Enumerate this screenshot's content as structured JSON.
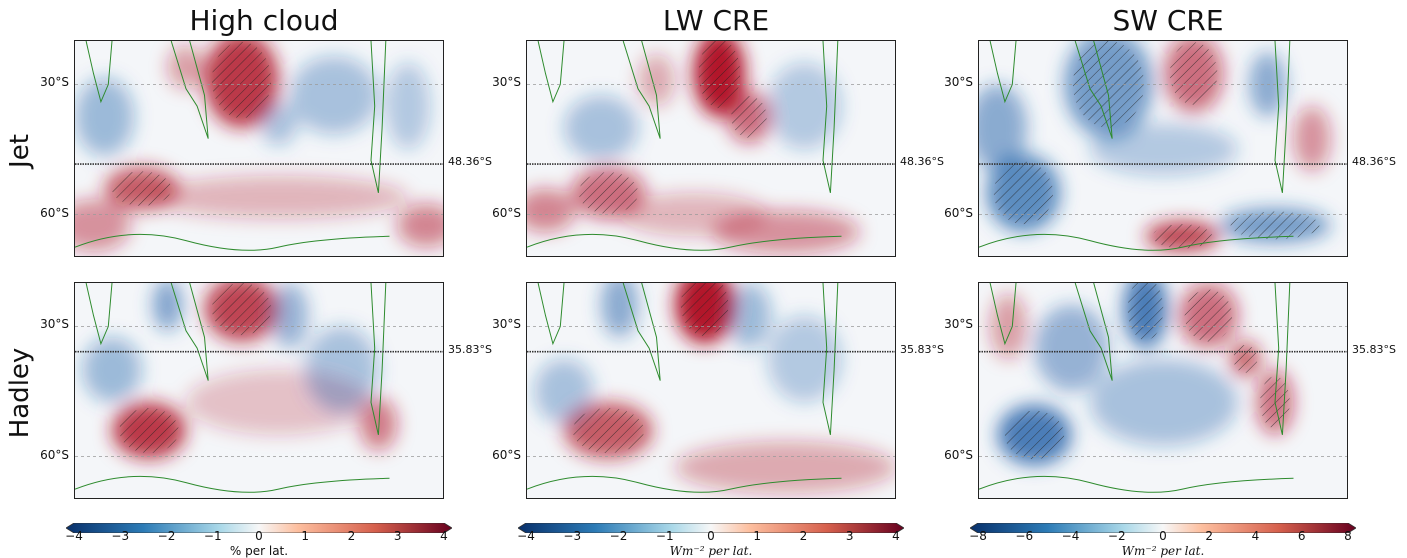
{
  "columns": [
    {
      "title": "High cloud",
      "colorbar": {
        "min": -4,
        "max": 4,
        "ticks": [
          "−4",
          "−3",
          "−2",
          "−1",
          "0",
          "1",
          "2",
          "3",
          "4"
        ],
        "label": "% per lat.",
        "label_italic": false
      }
    },
    {
      "title": "LW CRE",
      "colorbar": {
        "min": -4,
        "max": 4,
        "ticks": [
          "−4",
          "−3",
          "−2",
          "−1",
          "0",
          "1",
          "2",
          "3",
          "4"
        ],
        "label": "Wm⁻² per lat.",
        "label_italic": true
      }
    },
    {
      "title": "SW CRE",
      "colorbar": {
        "min": -8,
        "max": 8,
        "ticks": [
          "−8",
          "−6",
          "−4",
          "−2",
          "0",
          "2",
          "4",
          "6",
          "8"
        ],
        "label": "Wm⁻² per lat.",
        "label_italic": true
      }
    }
  ],
  "rows": [
    {
      "label": "Jet",
      "divider_label": "48.36°S",
      "yticks": [
        "30°S",
        "60°S"
      ]
    },
    {
      "label": "Hadley",
      "divider_label": "35.83°S",
      "yticks": [
        "30°S",
        "60°S"
      ]
    }
  ],
  "colors": {
    "negative": "#1f5fa8",
    "positive": "#b2182b",
    "coast": "#2e8b2e",
    "divider": "#333333",
    "grid": "#9a9a9a",
    "hatch": "#222222"
  },
  "chart_data": {
    "type": "heatmap",
    "description_axis": "latitude",
    "y_range": [
      "20°S",
      "70°S"
    ],
    "grid": "dashed at 30°S and 60°S",
    "panels": [
      {
        "column": "High cloud",
        "row": "Jet",
        "divider_lat": "48.36°S",
        "blobs": [
          {
            "x": 0.45,
            "y": 0.18,
            "rx": 0.1,
            "ry": 0.22,
            "v": 0.85
          },
          {
            "x": 0.3,
            "y": 0.12,
            "rx": 0.05,
            "ry": 0.1,
            "v": 0.4
          },
          {
            "x": 0.55,
            "y": 0.38,
            "rx": 0.05,
            "ry": 0.1,
            "v": -0.35
          },
          {
            "x": 0.08,
            "y": 0.35,
            "rx": 0.08,
            "ry": 0.18,
            "v": -0.4
          },
          {
            "x": 0.7,
            "y": 0.25,
            "rx": 0.12,
            "ry": 0.18,
            "v": -0.35
          },
          {
            "x": 0.9,
            "y": 0.3,
            "rx": 0.06,
            "ry": 0.2,
            "v": -0.3
          },
          {
            "x": 0.18,
            "y": 0.68,
            "rx": 0.1,
            "ry": 0.1,
            "v": 0.7
          },
          {
            "x": 0.05,
            "y": 0.85,
            "rx": 0.1,
            "ry": 0.12,
            "v": 0.45
          },
          {
            "x": 0.55,
            "y": 0.72,
            "rx": 0.35,
            "ry": 0.1,
            "v": 0.3
          },
          {
            "x": 0.95,
            "y": 0.85,
            "rx": 0.08,
            "ry": 0.1,
            "v": 0.5
          }
        ]
      },
      {
        "column": "LW CRE",
        "row": "Jet",
        "divider_lat": "48.36°S",
        "blobs": [
          {
            "x": 0.52,
            "y": 0.15,
            "rx": 0.07,
            "ry": 0.2,
            "v": 1.0
          },
          {
            "x": 0.6,
            "y": 0.35,
            "rx": 0.06,
            "ry": 0.12,
            "v": 0.6
          },
          {
            "x": 0.35,
            "y": 0.18,
            "rx": 0.05,
            "ry": 0.12,
            "v": 0.35
          },
          {
            "x": 0.2,
            "y": 0.4,
            "rx": 0.1,
            "ry": 0.15,
            "v": -0.35
          },
          {
            "x": 0.75,
            "y": 0.3,
            "rx": 0.1,
            "ry": 0.2,
            "v": -0.3
          },
          {
            "x": 0.22,
            "y": 0.7,
            "rx": 0.1,
            "ry": 0.12,
            "v": 0.6
          },
          {
            "x": 0.05,
            "y": 0.78,
            "rx": 0.08,
            "ry": 0.1,
            "v": 0.5
          },
          {
            "x": 0.7,
            "y": 0.88,
            "rx": 0.2,
            "ry": 0.1,
            "v": 0.45
          },
          {
            "x": 0.45,
            "y": 0.8,
            "rx": 0.2,
            "ry": 0.1,
            "v": 0.3
          }
        ]
      },
      {
        "column": "SW CRE",
        "row": "Jet",
        "divider_lat": "48.36°S",
        "blobs": [
          {
            "x": 0.35,
            "y": 0.2,
            "rx": 0.12,
            "ry": 0.25,
            "v": -0.6
          },
          {
            "x": 0.12,
            "y": 0.7,
            "rx": 0.1,
            "ry": 0.18,
            "v": -0.7
          },
          {
            "x": 0.58,
            "y": 0.15,
            "rx": 0.08,
            "ry": 0.18,
            "v": 0.6
          },
          {
            "x": 0.78,
            "y": 0.2,
            "rx": 0.05,
            "ry": 0.15,
            "v": -0.5
          },
          {
            "x": 0.9,
            "y": 0.45,
            "rx": 0.05,
            "ry": 0.15,
            "v": 0.45
          },
          {
            "x": 0.55,
            "y": 0.9,
            "rx": 0.1,
            "ry": 0.07,
            "v": 0.8
          },
          {
            "x": 0.8,
            "y": 0.85,
            "rx": 0.15,
            "ry": 0.08,
            "v": -0.6
          },
          {
            "x": 0.05,
            "y": 0.4,
            "rx": 0.08,
            "ry": 0.2,
            "v": -0.5
          },
          {
            "x": 0.5,
            "y": 0.5,
            "rx": 0.2,
            "ry": 0.12,
            "v": -0.3
          }
        ]
      },
      {
        "column": "High cloud",
        "row": "Hadley",
        "divider_lat": "35.83°S",
        "blobs": [
          {
            "x": 0.45,
            "y": 0.12,
            "rx": 0.1,
            "ry": 0.15,
            "v": 0.8
          },
          {
            "x": 0.25,
            "y": 0.1,
            "rx": 0.04,
            "ry": 0.12,
            "v": -0.55
          },
          {
            "x": 0.58,
            "y": 0.15,
            "rx": 0.05,
            "ry": 0.15,
            "v": -0.45
          },
          {
            "x": 0.2,
            "y": 0.68,
            "rx": 0.1,
            "ry": 0.13,
            "v": 0.85
          },
          {
            "x": 0.82,
            "y": 0.65,
            "rx": 0.05,
            "ry": 0.12,
            "v": 0.55
          },
          {
            "x": 0.1,
            "y": 0.4,
            "rx": 0.08,
            "ry": 0.15,
            "v": -0.4
          },
          {
            "x": 0.55,
            "y": 0.55,
            "rx": 0.25,
            "ry": 0.15,
            "v": 0.25
          },
          {
            "x": 0.72,
            "y": 0.4,
            "rx": 0.1,
            "ry": 0.2,
            "v": -0.35
          }
        ]
      },
      {
        "column": "LW CRE",
        "row": "Hadley",
        "divider_lat": "35.83°S",
        "blobs": [
          {
            "x": 0.48,
            "y": 0.1,
            "rx": 0.08,
            "ry": 0.18,
            "v": 1.0
          },
          {
            "x": 0.25,
            "y": 0.1,
            "rx": 0.05,
            "ry": 0.15,
            "v": -0.5
          },
          {
            "x": 0.6,
            "y": 0.15,
            "rx": 0.06,
            "ry": 0.15,
            "v": -0.4
          },
          {
            "x": 0.22,
            "y": 0.68,
            "rx": 0.12,
            "ry": 0.13,
            "v": 0.7
          },
          {
            "x": 0.7,
            "y": 0.85,
            "rx": 0.3,
            "ry": 0.12,
            "v": 0.35
          },
          {
            "x": 0.1,
            "y": 0.5,
            "rx": 0.08,
            "ry": 0.15,
            "v": -0.35
          },
          {
            "x": 0.75,
            "y": 0.35,
            "rx": 0.1,
            "ry": 0.2,
            "v": -0.3
          }
        ]
      },
      {
        "column": "SW CRE",
        "row": "Hadley",
        "divider_lat": "35.83°S",
        "blobs": [
          {
            "x": 0.45,
            "y": 0.12,
            "rx": 0.06,
            "ry": 0.18,
            "v": -0.8
          },
          {
            "x": 0.62,
            "y": 0.15,
            "rx": 0.08,
            "ry": 0.15,
            "v": 0.6
          },
          {
            "x": 0.72,
            "y": 0.35,
            "rx": 0.04,
            "ry": 0.08,
            "v": 0.7
          },
          {
            "x": 0.8,
            "y": 0.55,
            "rx": 0.05,
            "ry": 0.15,
            "v": 0.6
          },
          {
            "x": 0.15,
            "y": 0.7,
            "rx": 0.1,
            "ry": 0.14,
            "v": -0.8
          },
          {
            "x": 0.25,
            "y": 0.3,
            "rx": 0.1,
            "ry": 0.2,
            "v": -0.45
          },
          {
            "x": 0.5,
            "y": 0.55,
            "rx": 0.2,
            "ry": 0.2,
            "v": -0.35
          },
          {
            "x": 0.08,
            "y": 0.2,
            "rx": 0.05,
            "ry": 0.15,
            "v": 0.4
          }
        ]
      }
    ]
  }
}
